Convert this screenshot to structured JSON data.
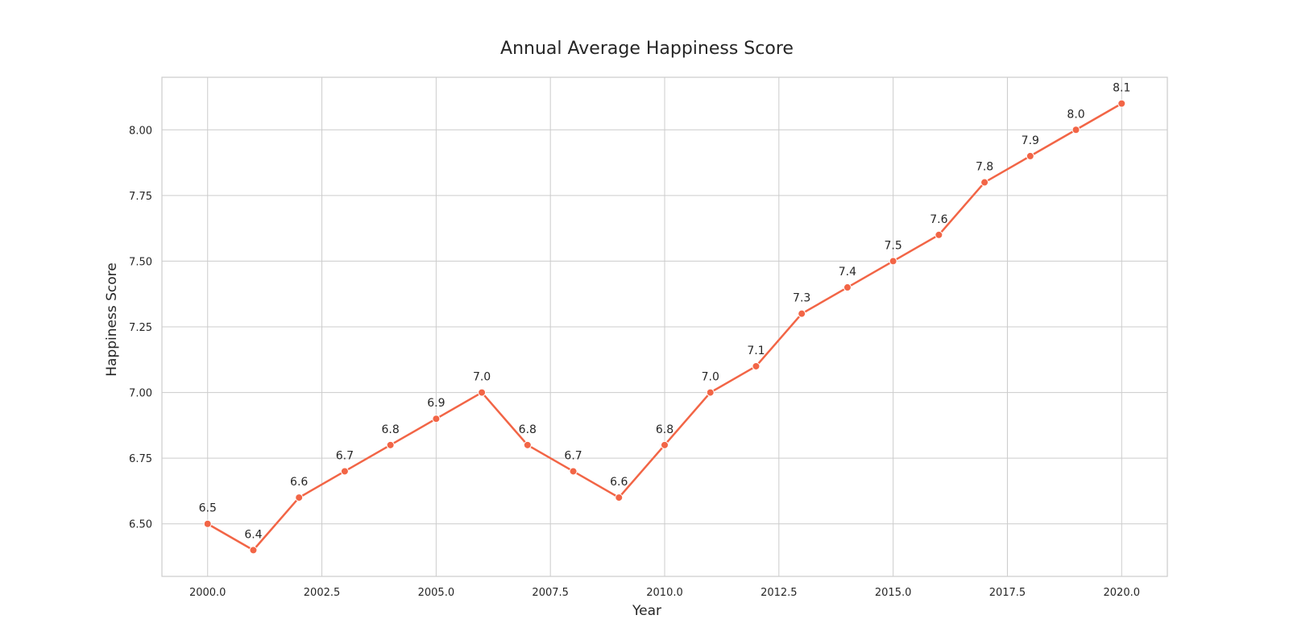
{
  "chart_data": {
    "type": "line",
    "title": "Annual Average Happiness Score",
    "xlabel": "Year",
    "ylabel": "Happiness Score",
    "x": [
      2000,
      2001,
      2002,
      2003,
      2004,
      2005,
      2006,
      2007,
      2008,
      2009,
      2010,
      2011,
      2012,
      2013,
      2014,
      2015,
      2016,
      2017,
      2018,
      2019,
      2020
    ],
    "series": [
      {
        "values": [
          6.5,
          6.4,
          6.6,
          6.7,
          6.8,
          6.9,
          7.0,
          6.8,
          6.7,
          6.6,
          6.8,
          7.0,
          7.1,
          7.3,
          7.4,
          7.5,
          7.6,
          7.8,
          7.9,
          8.0,
          8.1
        ],
        "labels": [
          "6.5",
          "6.4",
          "6.6",
          "6.7",
          "6.8",
          "6.9",
          "7.0",
          "6.8",
          "6.7",
          "6.6",
          "6.8",
          "7.0",
          "7.1",
          "7.3",
          "7.4",
          "7.5",
          "7.6",
          "7.8",
          "7.9",
          "8.0",
          "8.1"
        ],
        "color": "#f26546"
      }
    ],
    "xlim": [
      1999.0,
      2021.0
    ],
    "ylim": [
      6.3,
      8.2
    ],
    "xticks": [
      2000.0,
      2002.5,
      2005.0,
      2007.5,
      2010.0,
      2012.5,
      2015.0,
      2017.5,
      2020.0
    ],
    "xtick_labels": [
      "2000.0",
      "2002.5",
      "2005.0",
      "2007.5",
      "2010.0",
      "2012.5",
      "2015.0",
      "2017.5",
      "2020.0"
    ],
    "yticks": [
      6.5,
      6.75,
      7.0,
      7.25,
      7.5,
      7.75,
      8.0
    ],
    "ytick_labels": [
      "6.50",
      "6.75",
      "7.00",
      "7.25",
      "7.50",
      "7.75",
      "8.00"
    ],
    "grid": true,
    "legend": "none"
  }
}
